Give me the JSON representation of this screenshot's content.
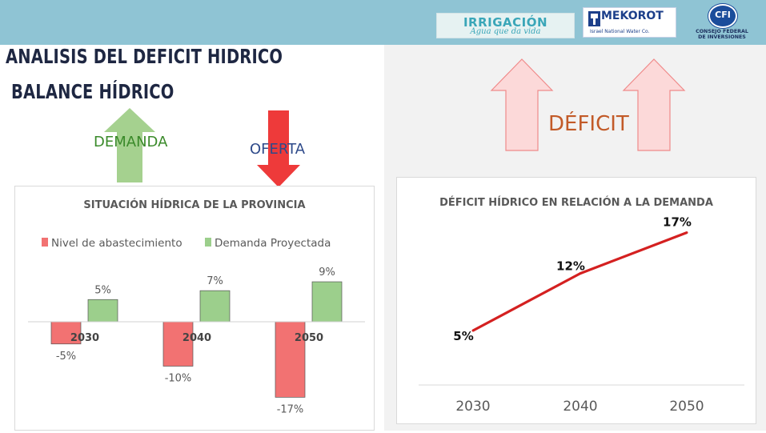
{
  "header": {
    "logo_irrigacion": {
      "name": "IRRIGACIÓN",
      "tagline": "Agua que da vida"
    },
    "logo_mekorot": {
      "name": "MEKOROT",
      "tagline": "Israel National Water Co."
    },
    "logo_cfi": {
      "name": "CFI",
      "line1": "CONSEJO FEDERAL",
      "line2": "DE INVERSIONES"
    }
  },
  "slide": {
    "title_line1": "ANALISIS DEL DEFICIT HIDRICO",
    "title_line2": "BALANCE HÍDRICO",
    "label_demanda": "DEMANDA",
    "label_oferta": "OFERTA",
    "label_deficit": "DÉFICIT"
  },
  "colors": {
    "header": "#8fc4d4",
    "red_bar": "#f27272",
    "green_bar": "#9ccf8c",
    "line": "#d42020"
  },
  "chart_data": [
    {
      "type": "bar",
      "title": "SITUACIÓN HÍDRICA DE LA PROVINCIA",
      "categories": [
        "2030",
        "2040",
        "2050"
      ],
      "series": [
        {
          "name": "Nivel de abastecimiento",
          "values": [
            -5,
            -10,
            -17
          ],
          "labels": [
            "-5%",
            "-10%",
            "-17%"
          ]
        },
        {
          "name": "Demanda Proyectada",
          "values": [
            5,
            7,
            9
          ],
          "labels": [
            "5%",
            "7%",
            "9%"
          ]
        }
      ],
      "legend": "top",
      "grid": false
    },
    {
      "type": "line",
      "title": "DÉFICIT HÍDRICO EN RELACIÓN A LA DEMANDA",
      "categories": [
        "2030",
        "2040",
        "2050"
      ],
      "values": [
        5,
        12,
        17
      ],
      "labels": [
        "5%",
        "12%",
        "17%"
      ],
      "grid": false
    }
  ]
}
